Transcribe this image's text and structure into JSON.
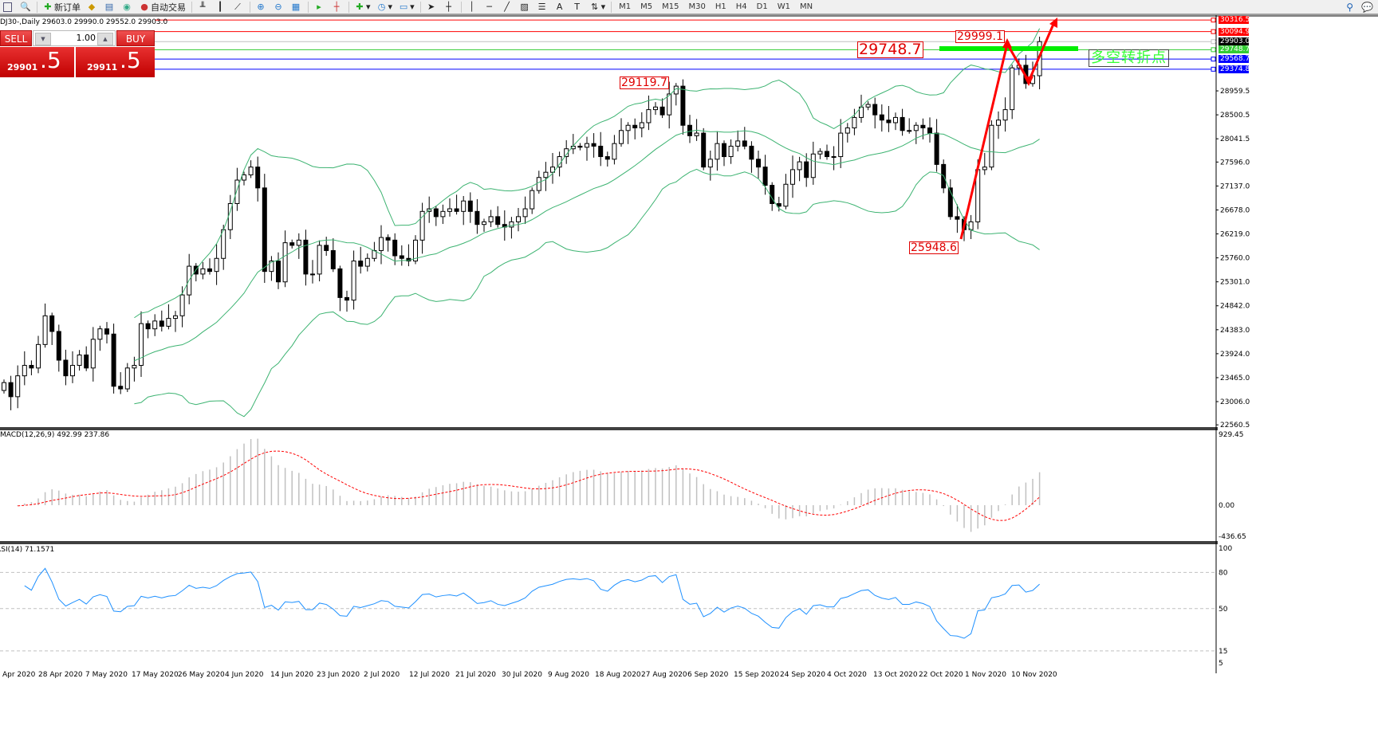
{
  "toolbar": {
    "new_order": "新订单",
    "auto_trading": "自动交易",
    "icons": [
      "chart-window-icon",
      "zoom-window-icon",
      "new-order-icon",
      "market-watch-icon",
      "history-icon",
      "signals-icon",
      "auto-trading-icon",
      "bar-chart-icon",
      "candlestick-icon",
      "line-chart-icon",
      "zoom-in-icon",
      "zoom-out-icon",
      "tile-windows-icon",
      "auto-scroll-icon",
      "chart-shift-icon",
      "indicators-icon",
      "periods-icon",
      "templates-icon",
      "cursor-icon",
      "crosshair-icon",
      "vertical-line-icon",
      "horizontal-line-icon",
      "trendline-icon",
      "equidistant-channel-icon",
      "fibonacci-icon",
      "text-icon",
      "text-label-icon",
      "arrows-icon",
      "search-icon",
      "chat-icon"
    ],
    "timeframes": [
      "M1",
      "M5",
      "M15",
      "M30",
      "H1",
      "H4",
      "D1",
      "W1",
      "MN"
    ]
  },
  "symbol_info": "DJ30-,Daily  29603.0 29990.0 29552.0 29903.0",
  "trade_panel": {
    "sell_label": "SELL",
    "buy_label": "BUY",
    "lot": "1.00",
    "sell_price_main": "29901",
    "sell_price_big": ".5",
    "buy_price_main": "29911",
    "buy_price_big": ".5"
  },
  "price_axis": [
    "28959.5",
    "28500.5",
    "28041.5",
    "27596.0",
    "27137.0",
    "26678.0",
    "26219.0",
    "25760.0",
    "25301.0",
    "24842.0",
    "24383.0",
    "23924.0",
    "23465.0",
    "23006.0",
    "22560.5"
  ],
  "price_tags": [
    {
      "value": "30316.5",
      "color": "#ff0000"
    },
    {
      "value": "30094.9",
      "color": "#ff0000"
    },
    {
      "value": "29903.0",
      "color": "#000000"
    },
    {
      "value": "29748.7",
      "color": "#33cc33"
    },
    {
      "value": "29568.7",
      "color": "#0000ff"
    },
    {
      "value": "29374.8",
      "color": "#0000ff"
    }
  ],
  "annotations": {
    "level_main": "29748.7",
    "high_recent": "29999.1",
    "high_sep": "29119.7",
    "low_oct": "25948.6",
    "pivot_text": "多空转折点"
  },
  "macd": {
    "label": "MACD(12,26,9) 492.99 237.86",
    "axis": [
      "929.45",
      "0.00",
      "-436.65"
    ]
  },
  "rsi": {
    "label": "RSI(14) 71.1571",
    "axis": [
      "100",
      "80",
      "50",
      "15",
      "5"
    ]
  },
  "time_axis": [
    "Apr 2020",
    "28 Apr 2020",
    "7 May 2020",
    "17 May 2020",
    "26 May 2020",
    "4 Jun 2020",
    "14 Jun 2020",
    "23 Jun 2020",
    "2 Jul 2020",
    "12 Jul 2020",
    "21 Jul 2020",
    "30 Jul 2020",
    "9 Aug 2020",
    "18 Aug 2020",
    "27 Aug 2020",
    "6 Sep 2020",
    "15 Sep 2020",
    "24 Sep 2020",
    "4 Oct 2020",
    "13 Oct 2020",
    "22 Oct 2020",
    "1 Nov 2020",
    "10 Nov 2020"
  ],
  "colors": {
    "bollinger": "#3cb371",
    "macd_hist": "#c0c0c0",
    "macd_signal": "#ff0000",
    "rsi": "#1e90ff",
    "arrow": "#ff0000",
    "pivot_bar": "#00ee00"
  },
  "chart_data": {
    "type": "candlestick",
    "symbol": "DJ30-",
    "period": "Daily",
    "closes": [
      23370,
      23100,
      23500,
      23700,
      23650,
      24100,
      24650,
      24350,
      23800,
      23500,
      23700,
      23900,
      23650,
      24200,
      24400,
      24300,
      23300,
      23250,
      23650,
      23700,
      24500,
      24400,
      24550,
      24450,
      24600,
      24650,
      25050,
      25600,
      25450,
      25550,
      25500,
      25750,
      26300,
      26800,
      27250,
      27350,
      27500,
      27100,
      25500,
      25700,
      25300,
      26050,
      26000,
      26100,
      25450,
      25450,
      26000,
      25900,
      25550,
      25000,
      24950,
      25700,
      25600,
      25750,
      25900,
      26150,
      26100,
      25800,
      25750,
      25700,
      26100,
      26650,
      26700,
      26550,
      26650,
      26700,
      26650,
      26850,
      26650,
      26400,
      26450,
      26550,
      26400,
      26350,
      26450,
      26550,
      26700,
      27050,
      27300,
      27400,
      27500,
      27700,
      27850,
      27900,
      27880,
      27950,
      27900,
      27700,
      27650,
      27950,
      28200,
      28300,
      28250,
      28350,
      28600,
      28650,
      28500,
      28900,
      29050,
      28300,
      28100,
      28150,
      27500,
      27650,
      27950,
      27700,
      27900,
      28000,
      27900,
      27650,
      27500,
      27150,
      26800,
      26750,
      27170,
      27450,
      27600,
      27300,
      27750,
      27800,
      27700,
      27700,
      28150,
      28250,
      28450,
      28650,
      28700,
      28500,
      28400,
      28350,
      28450,
      28200,
      28200,
      28300,
      28250,
      28150,
      27550,
      27100,
      26550,
      26500,
      26300,
      26450,
      27450,
      27500,
      28300,
      28400,
      28600,
      29400,
      29450,
      29100,
      29250,
      29903
    ],
    "ylim": [
      22560.5,
      30400
    ]
  }
}
